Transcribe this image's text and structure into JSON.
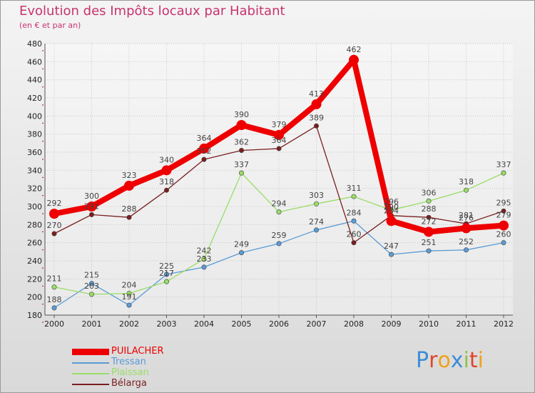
{
  "header": {
    "title": "Evolution des Impôts locaux par Habitant",
    "subtitle": "(en € et par an)"
  },
  "chart_data": {
    "type": "line",
    "title": "Evolution des Impôts locaux par Habitant",
    "subtitle": "(en € et par an)",
    "xlabel": "",
    "ylabel": "",
    "x": [
      2000,
      2001,
      2002,
      2003,
      2004,
      2005,
      2006,
      2007,
      2008,
      2009,
      2010,
      2011,
      2012
    ],
    "ylim": [
      180,
      480
    ],
    "yticks": [
      180,
      200,
      220,
      240,
      260,
      280,
      300,
      320,
      340,
      360,
      380,
      400,
      420,
      440,
      460,
      480
    ],
    "grid": true,
    "legend_position": "bottom-left",
    "series": [
      {
        "name": "PUILACHER",
        "color": "#ee0000",
        "values": [
          292,
          300,
          323,
          340,
          364,
          390,
          379,
          413,
          462,
          284,
          272,
          276,
          279
        ]
      },
      {
        "name": "Tressan",
        "color": "#5b9bd5",
        "values": [
          188,
          215,
          191,
          225,
          233,
          249,
          259,
          274,
          284,
          247,
          251,
          252,
          260
        ]
      },
      {
        "name": "Plaissan",
        "color": "#99dd66",
        "values": [
          211,
          203,
          204,
          217,
          242,
          337,
          294,
          303,
          311,
          296,
          306,
          318,
          337
        ]
      },
      {
        "name": "Bélarga",
        "color": "#7a1f1f",
        "values": [
          270,
          291,
          288,
          318,
          352,
          362,
          364,
          389,
          260,
          290,
          288,
          281,
          295
        ]
      }
    ]
  },
  "legend": {
    "items": [
      {
        "label": "PUILACHER",
        "color": "#ee0000"
      },
      {
        "label": "Tressan",
        "color": "#5b9bd5"
      },
      {
        "label": "Plaissan",
        "color": "#99dd66"
      },
      {
        "label": "Bélarga",
        "color": "#7a1f1f"
      }
    ]
  },
  "logo": {
    "text": "Proxiti",
    "colors": [
      "#3b8ed6",
      "#e0452a",
      "#f0a21a",
      "#3b8ed6",
      "#8bc34a",
      "#e0452a",
      "#f0a21a"
    ]
  }
}
